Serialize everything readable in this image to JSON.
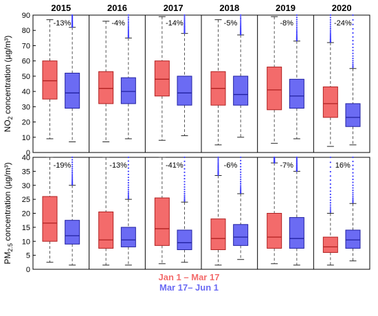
{
  "chart_data": {
    "type": "box",
    "years": [
      "2015",
      "2016",
      "2017",
      "2018",
      "2019",
      "2020"
    ],
    "colors": {
      "period1": "#f36b6b",
      "period2": "#6b6bf3",
      "outliers": "#3a3aff"
    },
    "legend": [
      {
        "label": "Jan 1 – Mar 17",
        "color": "#f36b6b"
      },
      {
        "label": "Mar 17– Jun 1",
        "color": "#6b6bf3"
      }
    ],
    "panels": [
      {
        "id": "no2",
        "ylabel_main": "NO",
        "ylabel_sub": "2",
        "ylabel_rest": " concentration (µg/m³)",
        "ylim": [
          0,
          90
        ],
        "yticks": [
          0,
          10,
          20,
          30,
          40,
          50,
          60,
          70,
          80,
          90
        ],
        "annotations": [
          "-13%",
          "-4%",
          "-14%",
          "-5%",
          "-8%",
          "-24%"
        ],
        "boxes": [
          [
            {
              "min": 9,
              "q1": 35,
              "median": 47,
              "q3": 60,
              "max": 87,
              "outliers_above": false
            },
            {
              "min": 7,
              "q1": 29,
              "median": 39,
              "q3": 52,
              "max": 82,
              "outliers_above": true
            }
          ],
          [
            {
              "min": 7,
              "q1": 32,
              "median": 42,
              "q3": 53,
              "max": 86,
              "outliers_above": false
            },
            {
              "min": 9,
              "q1": 32,
              "median": 40,
              "q3": 49,
              "max": 75,
              "outliers_above": true
            }
          ],
          [
            {
              "min": 8,
              "q1": 37,
              "median": 48,
              "q3": 60,
              "max": 89,
              "outliers_above": false
            },
            {
              "min": 11,
              "q1": 31,
              "median": 39,
              "q3": 50,
              "max": 78,
              "outliers_above": true
            }
          ],
          [
            {
              "min": 5,
              "q1": 31,
              "median": 42,
              "q3": 53,
              "max": 87,
              "outliers_above": false
            },
            {
              "min": 10,
              "q1": 31,
              "median": 38,
              "q3": 50,
              "max": 77,
              "outliers_above": true
            }
          ],
          [
            {
              "min": 6,
              "q1": 28,
              "median": 41,
              "q3": 56,
              "max": 89,
              "outliers_above": false
            },
            {
              "min": 9,
              "q1": 29,
              "median": 37,
              "q3": 48,
              "max": 73,
              "outliers_above": true
            }
          ],
          [
            {
              "min": 4,
              "q1": 23,
              "median": 32,
              "q3": 43,
              "max": 72,
              "outliers_above": true
            },
            {
              "min": 5,
              "q1": 17,
              "median": 23,
              "q3": 32,
              "max": 55,
              "outliers_above": true
            }
          ]
        ]
      },
      {
        "id": "pm25",
        "ylabel_main": "PM",
        "ylabel_sub": "2.5",
        "ylabel_rest": " concentration (µg/m³)",
        "ylim": [
          0,
          40
        ],
        "yticks": [
          0,
          5,
          10,
          15,
          20,
          25,
          30,
          35,
          40
        ],
        "annotations": [
          "-19%",
          "-13%",
          "-41%",
          "-6%",
          "-7%",
          "16%"
        ],
        "boxes": [
          [
            {
              "min": 2.5,
              "q1": 10,
              "median": 16.5,
              "q3": 26,
              "max": 40,
              "outliers_above": false
            },
            {
              "min": 1.5,
              "q1": 9,
              "median": 12,
              "q3": 17.5,
              "max": 30,
              "outliers_above": true
            }
          ],
          [
            {
              "min": 1.5,
              "q1": 7.5,
              "median": 10.5,
              "q3": 20.5,
              "max": 40,
              "outliers_above": false
            },
            {
              "min": 1.5,
              "q1": 8,
              "median": 10.5,
              "q3": 15,
              "max": 25,
              "outliers_above": true
            }
          ],
          [
            {
              "min": 2,
              "q1": 8.5,
              "median": 14.5,
              "q3": 25.5,
              "max": 40,
              "outliers_above": false
            },
            {
              "min": 2.5,
              "q1": 7,
              "median": 9.5,
              "q3": 14,
              "max": 24,
              "outliers_above": true
            }
          ],
          [
            {
              "min": 1.5,
              "q1": 7,
              "median": 11,
              "q3": 18,
              "max": 33.5,
              "outliers_above": true
            },
            {
              "min": 3.5,
              "q1": 8.5,
              "median": 11.5,
              "q3": 16,
              "max": 27,
              "outliers_above": true
            }
          ],
          [
            {
              "min": 2,
              "q1": 7.5,
              "median": 11.5,
              "q3": 20,
              "max": 38,
              "outliers_above": true
            },
            {
              "min": 1.5,
              "q1": 7.5,
              "median": 11,
              "q3": 18.5,
              "max": 35,
              "outliers_above": true
            }
          ],
          [
            {
              "min": 1.5,
              "q1": 6,
              "median": 8,
              "q3": 11.5,
              "max": 20,
              "outliers_above": true
            },
            {
              "min": 3,
              "q1": 7.5,
              "median": 10.5,
              "q3": 14,
              "max": 23.5,
              "outliers_above": true
            }
          ]
        ]
      }
    ]
  }
}
